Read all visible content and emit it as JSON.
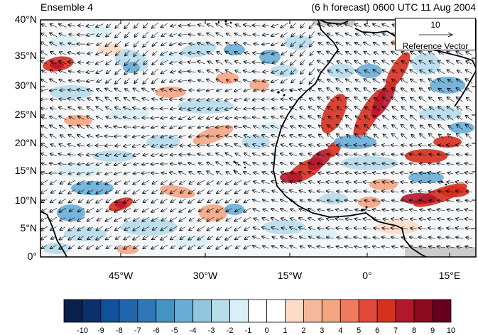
{
  "title": {
    "left": "Ensemble 4",
    "right": "(6 h forecast) 0600 UTC 11 Aug 2004"
  },
  "map": {
    "projection": "cylindrical-equidistant",
    "lon_range": [
      -57,
      20
    ],
    "lat_range": [
      0,
      40
    ],
    "lat_ticks": [
      "0°",
      "5°N",
      "10°N",
      "15°N",
      "20°N",
      "25°N",
      "30°N",
      "35°N",
      "40°N"
    ],
    "lon_ticks": [
      "45°W",
      "30°W",
      "15°W",
      "0°",
      "15°E"
    ],
    "coastline_color": "#000000",
    "wind_vectors": true
  },
  "reference_vector": {
    "magnitude": "10",
    "label": "Reference Vector"
  },
  "colorbar": {
    "labels": [
      "-10",
      "-9",
      "-8",
      "-7",
      "-6",
      "-5",
      "-4",
      "-3",
      "-2",
      "-1",
      "0",
      "1",
      "2",
      "3",
      "4",
      "5",
      "6",
      "7",
      "8",
      "9",
      "10"
    ],
    "colors": [
      "#08204a",
      "#0b306b",
      "#12519b",
      "#2166ac",
      "#2f78b7",
      "#4393c3",
      "#6aaed6",
      "#92c5de",
      "#b7dcea",
      "#d9eef6",
      "#ffffff",
      "#ffffff",
      "#fddbc7",
      "#f7b79a",
      "#f4a582",
      "#ee7b5c",
      "#e3493b",
      "#d6301f",
      "#b2182b",
      "#8b0a1e",
      "#67001f"
    ]
  }
}
